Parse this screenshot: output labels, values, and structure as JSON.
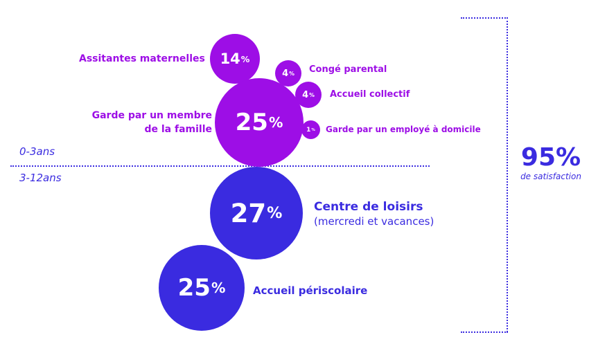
{
  "age_groups": {
    "young": "0-3ans",
    "older": "3-12ans"
  },
  "bubbles": {
    "assistantes": {
      "value": "14",
      "unit": "%",
      "label": "Assitantes maternelles"
    },
    "conge": {
      "value": "4",
      "unit": "%",
      "label": "Congé parental"
    },
    "accueil_collectif": {
      "value": "4",
      "unit": "%",
      "label": "Accueil collectif"
    },
    "garde_famille": {
      "value": "25",
      "unit": "%",
      "label_line1": "Garde par un membre",
      "label_line2": "de la famille"
    },
    "garde_domicile": {
      "value": "1",
      "unit": "%",
      "label": "Garde par un employé à domicile"
    },
    "centre_loisirs": {
      "value": "27",
      "unit": "%",
      "label_line1": "Centre de loisirs",
      "label_line2": "(mercredi et vacances)"
    },
    "periscolaire": {
      "value": "25",
      "unit": "%",
      "label": "Accueil périscolaire"
    }
  },
  "satisfaction": {
    "value": "95%",
    "label": "de satisfaction"
  },
  "colors": {
    "purple": "#9d0ee6",
    "blue": "#3a2be0"
  }
}
